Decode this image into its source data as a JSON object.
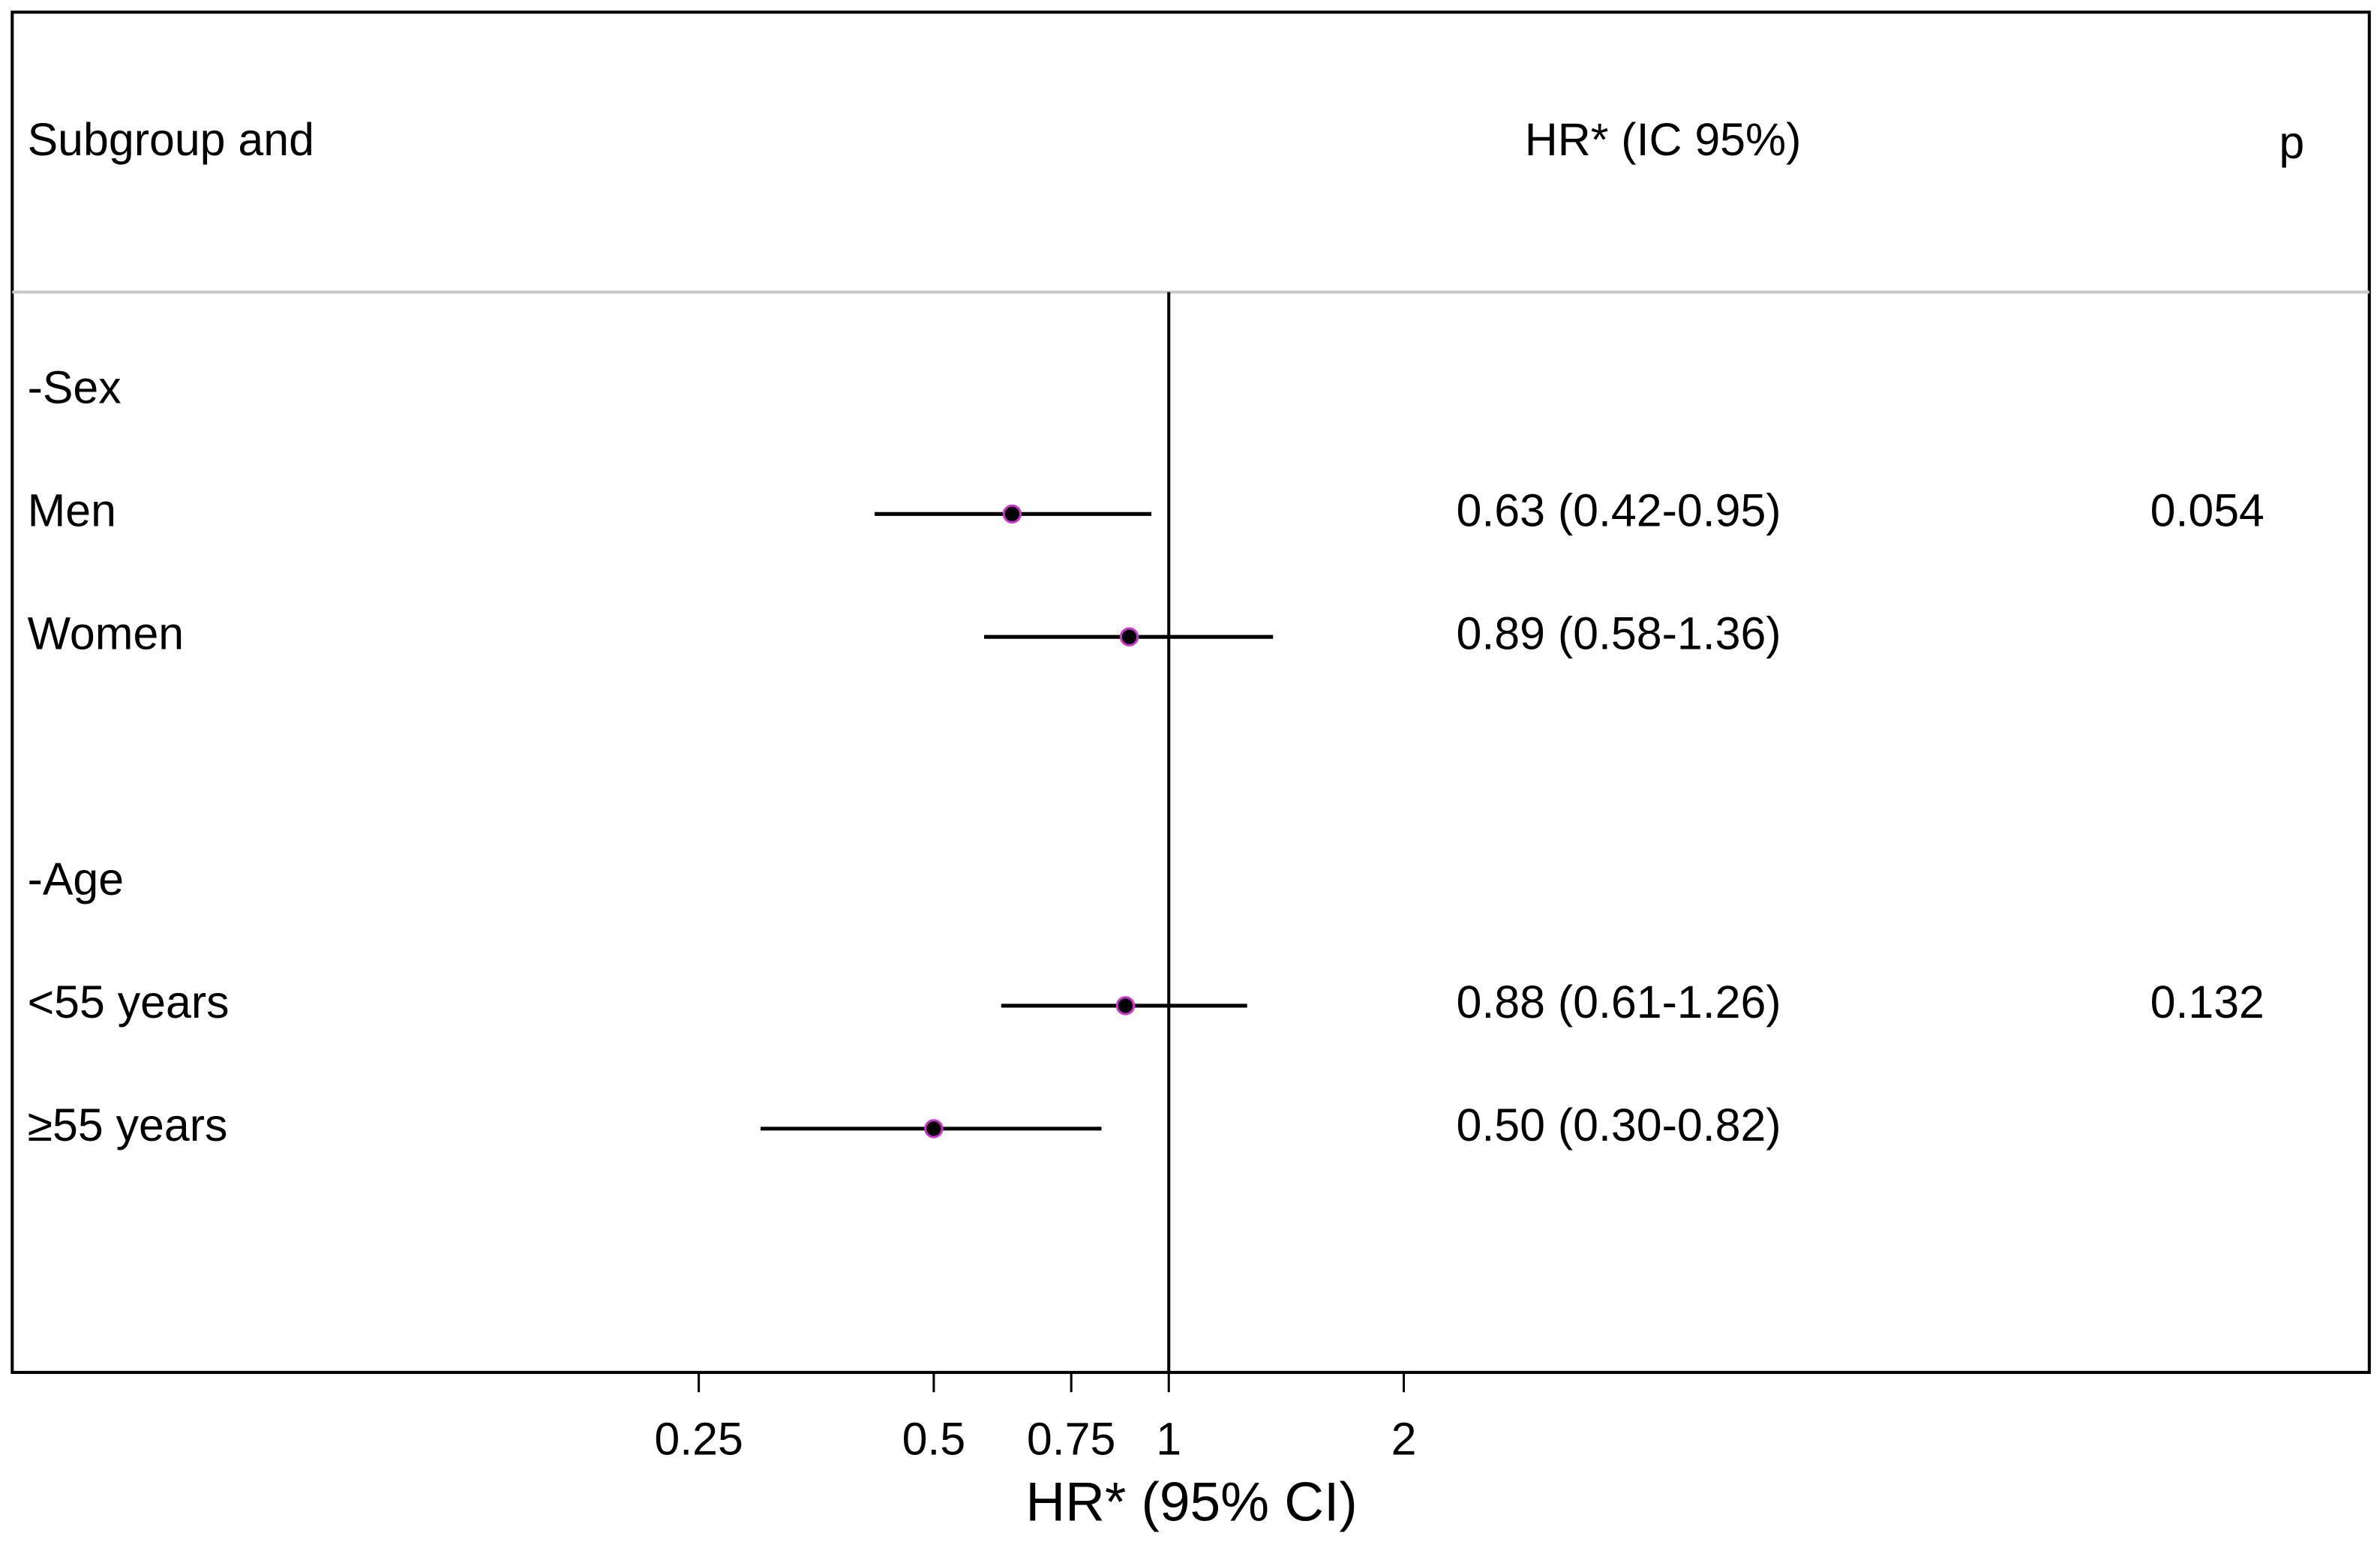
{
  "chart_data": {
    "type": "forest",
    "header": {
      "subgroup": "Subgroup and",
      "estimate": "HR* (IC 95%)",
      "p": "p"
    },
    "x_label": "HR* (95% CI)",
    "log_scale": true,
    "xlim": [
      0.033,
      34.5
    ],
    "xticks": [
      0.25,
      0.5,
      0.75,
      1,
      2
    ],
    "reference_line": 1,
    "categories": [
      "-Sex",
      "Men",
      "Women",
      null,
      "-Age",
      "<55 years",
      "≥55 years"
    ],
    "series": [
      {
        "color": "#000000",
        "marker_edge": "#cc33cc",
        "values": [
          null,
          0.63,
          0.89,
          null,
          null,
          0.88,
          0.5
        ],
        "lower": [
          null,
          0.42,
          0.58,
          null,
          null,
          0.61,
          0.3
        ],
        "upper": [
          null,
          0.95,
          1.36,
          null,
          null,
          1.26,
          0.82
        ],
        "value_labels": [
          null,
          "0.63 (0.42-0.95)",
          "0.89 (0.58-1.36)",
          null,
          null,
          "0.88 (0.61-1.26)",
          "0.50 (0.30-0.82)"
        ],
        "p": [
          null,
          0.054,
          null,
          null,
          null,
          0.132,
          null
        ]
      }
    ]
  }
}
